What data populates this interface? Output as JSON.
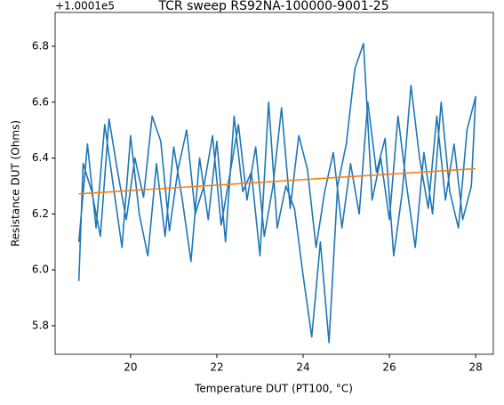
{
  "chart_data": {
    "type": "line",
    "title": "TCR sweep RS92NA-100000-9001-25",
    "x_label": "Temperature DUT (PT100, °C)",
    "y_label": "Resistance DUT (Ohms)",
    "y_offset_label": "+1.0001e5",
    "xlim": [
      18.25,
      28.41
    ],
    "ylim": [
      5.698,
      6.921
    ],
    "xticks": [
      20,
      22,
      24,
      26,
      28
    ],
    "yticks": [
      5.8,
      {
        "value": 6.0,
        "label": "6.0"
      },
      6.2,
      6.4,
      6.6,
      6.8
    ],
    "series": [
      {
        "color": "#1f77b4",
        "x": [
          18.8,
          19.0,
          19.2,
          19.4,
          19.6,
          19.8,
          20.0,
          20.2,
          20.4,
          20.6,
          20.8,
          21.0,
          21.2,
          21.4,
          21.6,
          21.8,
          22.0,
          22.2,
          22.4,
          22.6,
          22.8,
          23.0,
          23.2,
          23.4,
          23.6,
          23.8,
          24.0,
          24.2,
          24.4,
          24.6,
          24.8,
          25.0,
          25.2,
          25.4,
          25.6,
          25.8,
          26.0,
          26.2,
          26.4,
          26.6,
          26.8,
          27.0,
          27.2,
          27.4,
          27.6,
          27.8,
          28.0,
          27.9,
          27.7,
          27.5,
          27.3,
          27.1,
          26.9,
          26.7,
          26.5,
          26.3,
          26.1,
          25.9,
          25.7,
          25.5,
          25.3,
          25.1,
          24.9,
          24.7,
          24.5,
          24.3,
          24.1,
          23.9,
          23.7,
          23.5,
          23.3,
          23.1,
          22.9,
          22.7,
          22.5,
          22.3,
          22.1,
          21.9,
          21.7,
          21.5,
          21.3,
          21.1,
          20.9,
          20.7,
          20.5,
          20.3,
          20.1,
          19.9,
          19.7,
          19.5,
          19.3,
          19.1,
          18.9,
          18.8
        ],
        "values": [
          6.1,
          6.45,
          6.15,
          6.52,
          6.3,
          6.08,
          6.48,
          6.2,
          6.05,
          6.38,
          6.12,
          6.44,
          6.25,
          6.03,
          6.4,
          6.18,
          6.46,
          6.1,
          6.55,
          6.28,
          6.35,
          6.05,
          6.6,
          6.15,
          6.3,
          6.22,
          5.98,
          5.76,
          6.1,
          5.74,
          6.3,
          6.45,
          6.72,
          6.81,
          6.25,
          6.4,
          6.18,
          6.55,
          6.3,
          6.08,
          6.42,
          6.2,
          6.6,
          6.28,
          6.15,
          6.5,
          6.62,
          6.3,
          6.18,
          6.45,
          6.25,
          6.55,
          6.22,
          6.4,
          6.66,
          6.28,
          6.05,
          6.47,
          6.35,
          6.6,
          6.2,
          6.38,
          6.15,
          6.42,
          6.28,
          6.08,
          6.36,
          6.48,
          6.22,
          6.58,
          6.3,
          6.12,
          6.44,
          6.25,
          6.52,
          6.34,
          6.16,
          6.48,
          6.3,
          6.2,
          6.5,
          6.36,
          6.14,
          6.46,
          6.55,
          6.26,
          6.4,
          6.18,
          6.35,
          6.54,
          6.12,
          6.28,
          6.38,
          5.96
        ]
      },
      {
        "color": "#ff7f0e",
        "x": [
          18.8,
          28.0
        ],
        "values": [
          6.272,
          6.362
        ]
      }
    ]
  }
}
